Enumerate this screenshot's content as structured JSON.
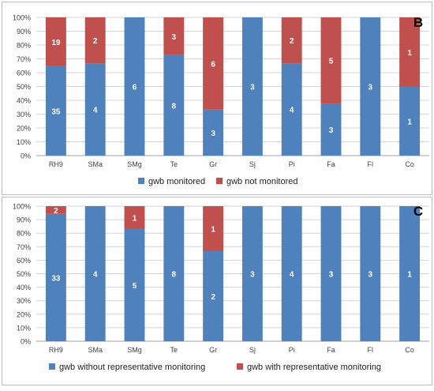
{
  "colors": {
    "blue": "#4F81BD",
    "red": "#C0504D",
    "grid": "#d4d4d4",
    "axis_text": "#404040",
    "bar_label": "#ffffff",
    "panel_border": "#bcbcbc"
  },
  "chart_data": [
    {
      "type": "bar",
      "stacked": true,
      "percent": true,
      "panel_label": "B",
      "categories": [
        "RH9",
        "SMa",
        "SMg",
        "Te",
        "Gr",
        "Sj",
        "Pi",
        "Fa",
        "Fl",
        "Co"
      ],
      "series": [
        {
          "name": "gwb monitored",
          "color": "blue",
          "values": [
            35,
            4,
            6,
            8,
            3,
            3,
            4,
            3,
            3,
            1
          ]
        },
        {
          "name": "gwb not monitored",
          "color": "red",
          "values": [
            19,
            2,
            0,
            3,
            6,
            0,
            2,
            5,
            0,
            1
          ]
        }
      ],
      "yticks": [
        "0%",
        "10%",
        "20%",
        "30%",
        "40%",
        "50%",
        "60%",
        "70%",
        "80%",
        "90%",
        "100%"
      ],
      "ylim": [
        0,
        100
      ],
      "grid": true,
      "legend_position": "bottom"
    },
    {
      "type": "bar",
      "stacked": true,
      "percent": true,
      "panel_label": "C",
      "categories": [
        "RH9",
        "SMa",
        "SMg",
        "Te",
        "Gr",
        "Sj",
        "Pi",
        "Fa",
        "Fl",
        "Co"
      ],
      "series": [
        {
          "name": "gwb without representative monitoring",
          "color": "blue",
          "values": [
            33,
            4,
            5,
            8,
            2,
            3,
            4,
            3,
            3,
            1
          ]
        },
        {
          "name": "gwb with representative monitoring",
          "color": "red",
          "values": [
            2,
            0,
            1,
            0,
            1,
            0,
            0,
            0,
            0,
            0
          ]
        }
      ],
      "yticks": [
        "0%",
        "10%",
        "20%",
        "30%",
        "40%",
        "50%",
        "60%",
        "70%",
        "80%",
        "90%",
        "100%"
      ],
      "ylim": [
        0,
        100
      ],
      "grid": true,
      "legend_position": "bottom"
    }
  ]
}
